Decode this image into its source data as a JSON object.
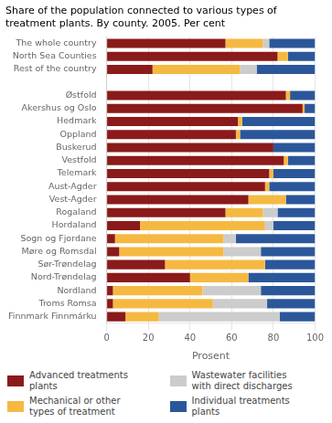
{
  "chart_data": {
    "type": "bar",
    "orientation": "horizontal",
    "stacked": true,
    "title": "Share of the population connected to various types of\ntreatment plants. By county. 2005. Per cent",
    "xlabel": "Prosent",
    "categories": [
      "The whole country",
      "North Sea Counties",
      "Rest of the country",
      null,
      "Østfold",
      "Akershus og Oslo",
      "Hedmark",
      "Oppland",
      "Buskerud",
      "Vestfold",
      "Telemark",
      "Aust-Agder",
      "Vest-Agder",
      "Rogaland",
      "Hordaland",
      "Sogn og Fjordane",
      "Møre og Romsdal",
      "Sør-Trøndelag",
      "Nord-Trøndelag",
      "Nordland",
      "Troms Romsa",
      "Finnmark Finnmárku"
    ],
    "series": [
      {
        "name": "Advanced treatments\nplants",
        "color": "#8B1A1A",
        "values": [
          57,
          82,
          22,
          0,
          86,
          94,
          63,
          62,
          80,
          85,
          78,
          76,
          68,
          57,
          16,
          4,
          6,
          28,
          40,
          3,
          3,
          9
        ]
      },
      {
        "name": "Mechanical or other\ntypes of treatment",
        "color": "#F5B942",
        "values": [
          18,
          5,
          42,
          0,
          2,
          1,
          2,
          2,
          0,
          2,
          2,
          2,
          18,
          18,
          60,
          52,
          50,
          48,
          28,
          43,
          48,
          16
        ]
      },
      {
        "name": "Wastewater facilities\nwith direct discharges",
        "color": "#CCCCCC",
        "values": [
          3,
          0,
          8,
          0,
          0,
          0,
          0,
          0,
          0,
          0,
          0,
          0,
          0,
          7,
          4,
          6,
          18,
          0,
          0,
          28,
          26,
          58
        ]
      },
      {
        "name": "Individual treatments\nplants",
        "color": "#2B579A",
        "values": [
          22,
          13,
          28,
          0,
          12,
          5,
          35,
          36,
          20,
          13,
          20,
          22,
          14,
          18,
          20,
          38,
          26,
          24,
          32,
          26,
          23,
          17
        ]
      }
    ],
    "xlim": [
      0,
      100
    ],
    "xticks": [
      0,
      20,
      40,
      60,
      80,
      100
    ],
    "grid": true,
    "legend": "bottom"
  }
}
